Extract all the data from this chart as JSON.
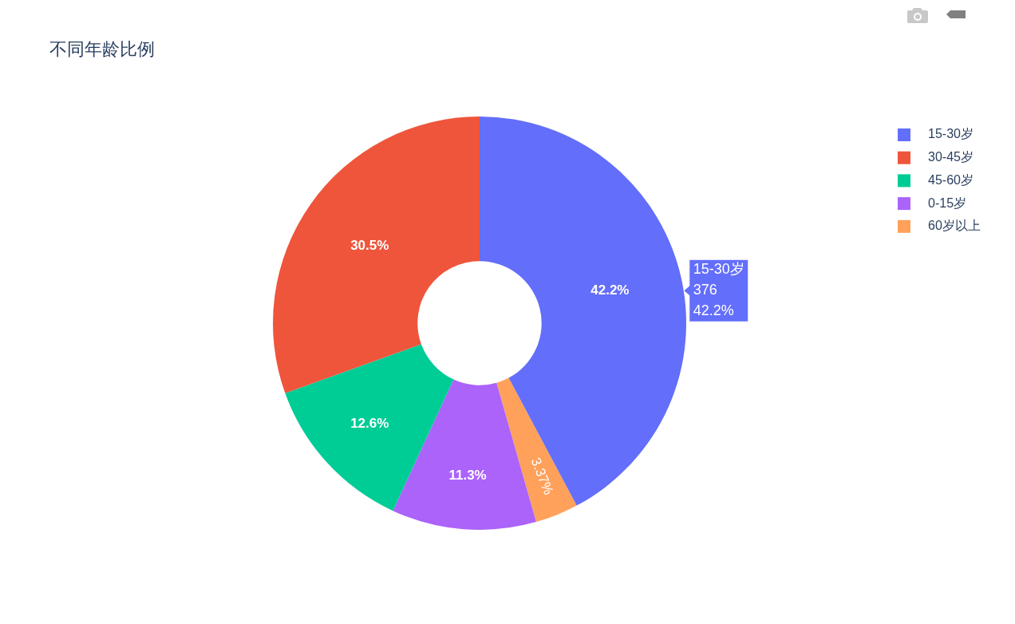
{
  "chart_data": {
    "type": "donut",
    "title": "不同年龄比例",
    "categories": [
      "15-30岁",
      "30-45岁",
      "45-60岁",
      "0-15岁",
      "60岁以上"
    ],
    "values": [
      42.2,
      30.5,
      12.6,
      11.3,
      3.37
    ],
    "colors": [
      "#636efa",
      "#ef553b",
      "#00cc96",
      "#ab63fa",
      "#ffa15a"
    ],
    "value_labels": [
      "42.2%",
      "30.5%",
      "12.6%",
      "11.3%",
      "3.37%"
    ],
    "legend": "top right",
    "annotations": [
      {
        "text": "15-30岁\n376\n42.2%",
        "x": "15-30岁"
      }
    ]
  }
}
